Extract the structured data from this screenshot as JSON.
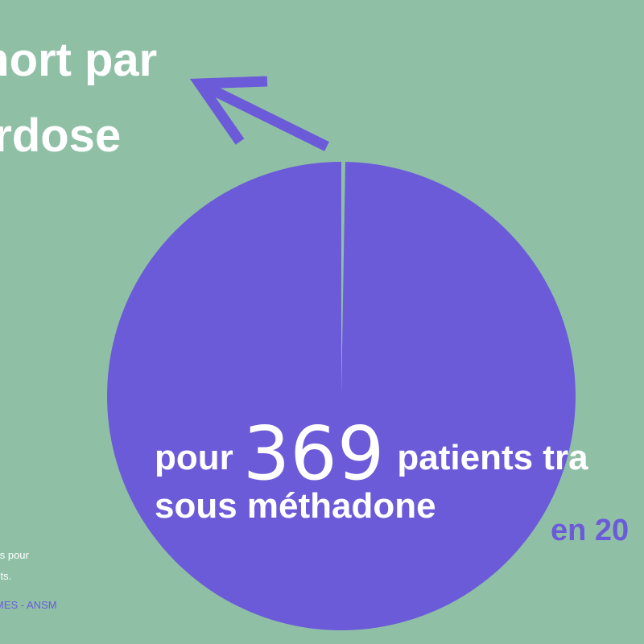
{
  "colors": {
    "background": "#8fc0a6",
    "accent": "#6c5bd8",
    "text": "#ffffff"
  },
  "headline": {
    "line1": "mort par",
    "line2": "erdose"
  },
  "ratio": {
    "prefix": "pour",
    "number": "369",
    "suffix": "patients tra",
    "line2": "sous méthadone",
    "year": "en 20"
  },
  "footnote": {
    "line1": "cès pour",
    "line2": "ents.",
    "source": "MES - ANSM"
  },
  "chart_data": {
    "type": "pie",
    "slices": [
      {
        "label": "mort par overdose",
        "value": 1
      },
      {
        "label": "patients traités sous méthadone",
        "value": 369
      }
    ],
    "colors": [
      "#8fc0a6",
      "#6c5bd8"
    ]
  }
}
